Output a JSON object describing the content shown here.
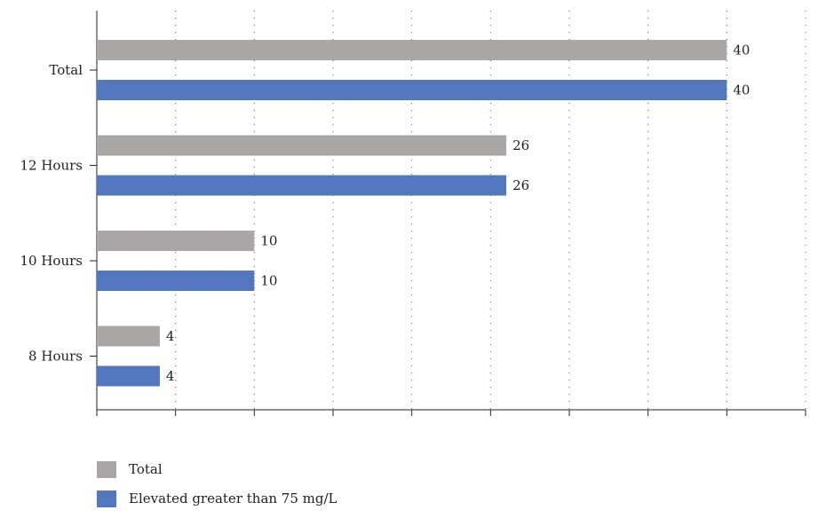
{
  "chart_data": {
    "type": "bar",
    "orientation": "horizontal",
    "categories": [
      "Total",
      "12 Hours",
      "10 Hours",
      "8 Hours"
    ],
    "series": [
      {
        "name": "Total",
        "values": [
          40,
          26,
          10,
          4
        ],
        "color": "#aba7a6"
      },
      {
        "name": "Elevated greater than 75 mg/L",
        "values": [
          40,
          26,
          10,
          4
        ],
        "color": "#5376be"
      }
    ],
    "xlim": [
      0,
      45
    ],
    "xticks": [
      0,
      5,
      10,
      15,
      20,
      25,
      30,
      35,
      40,
      45
    ],
    "grid": "vertical dotted",
    "data_labels": true,
    "legend_position": "bottom-left"
  }
}
